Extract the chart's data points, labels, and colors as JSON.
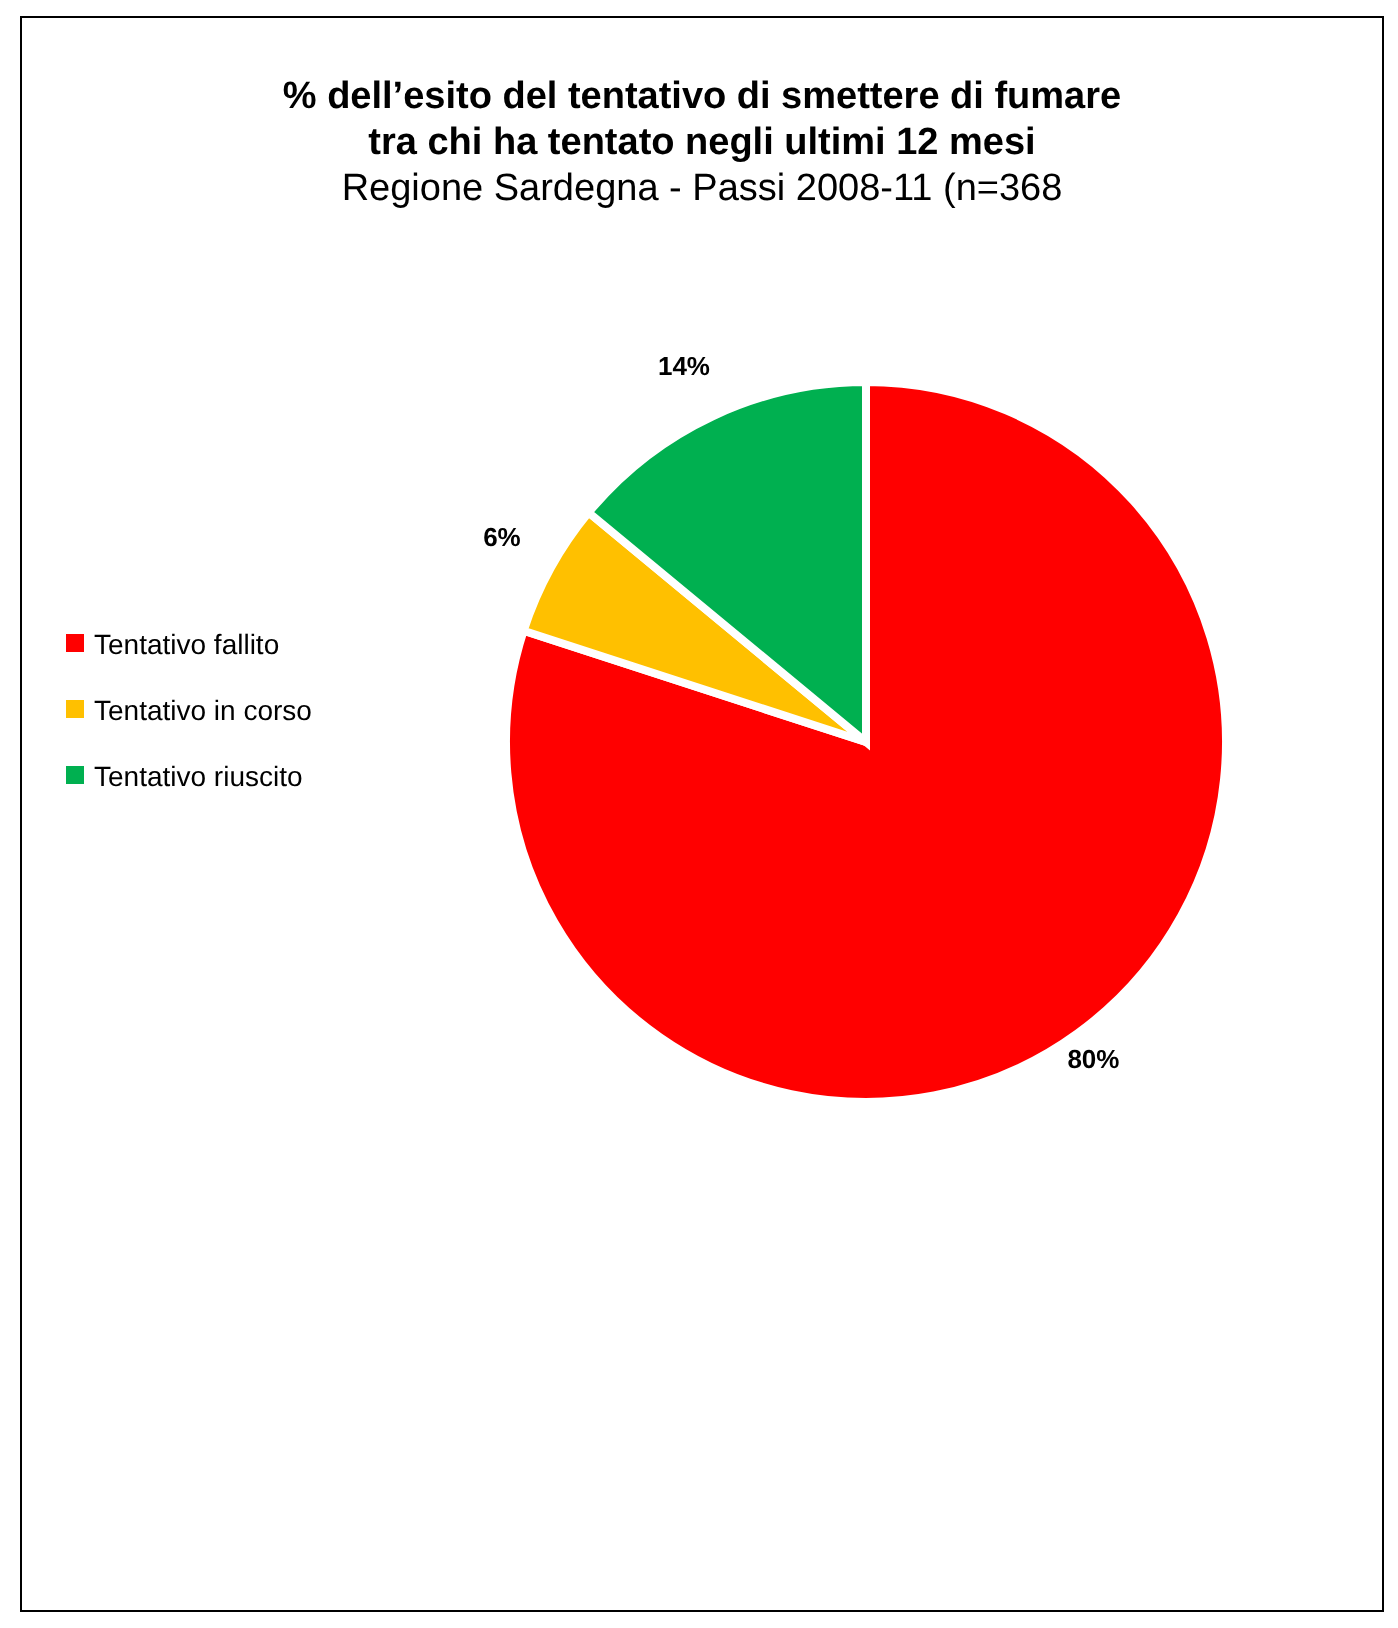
{
  "chart_data": {
    "type": "pie",
    "title": "% dell’esito del tentativo di smettere di fumare\ntra chi ha tentato negli ultimi 12 mesi",
    "subtitle": "Regione Sardegna - Passi 2008-11 (n=368",
    "categories": [
      "Tentativo fallito",
      "Tentativo in corso",
      "Tentativo riuscito"
    ],
    "values": [
      80,
      6,
      14
    ],
    "colors": [
      "#ff0000",
      "#ffc000",
      "#00b050"
    ],
    "value_labels": [
      "80%",
      "6%",
      "14%"
    ],
    "legend": "left"
  }
}
